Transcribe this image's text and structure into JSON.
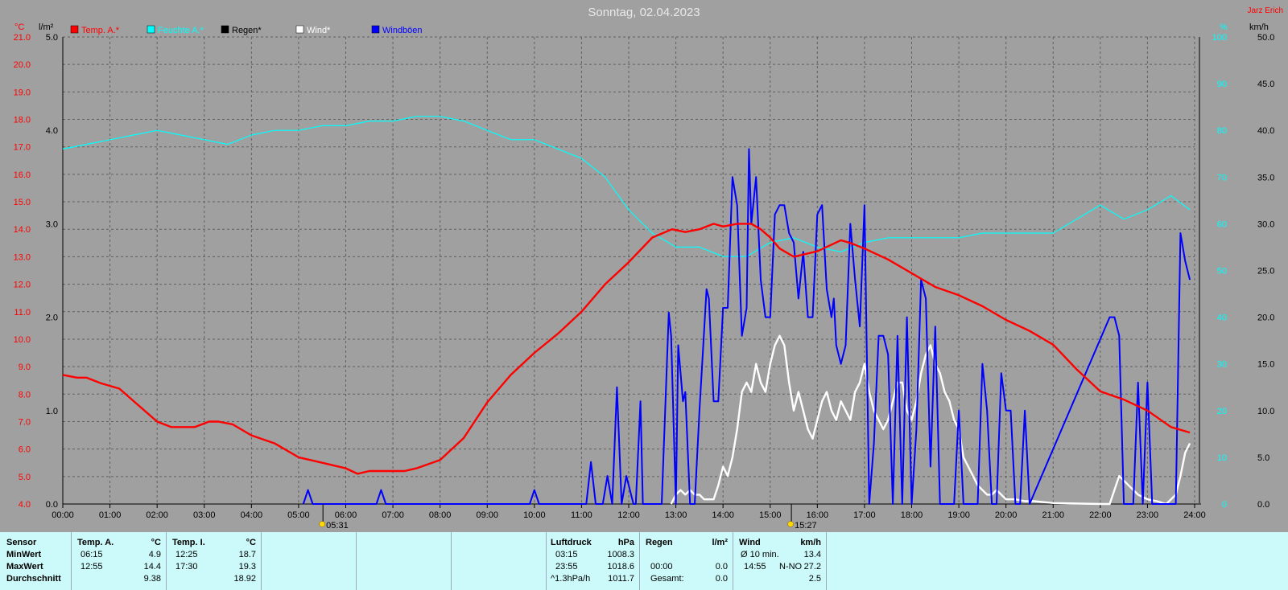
{
  "chart_data": {
    "type": "line",
    "title": "Sonntag, 02.04.2023",
    "author": "Jarz Erich",
    "x_ticks": [
      "00:00",
      "01:00",
      "02:00",
      "03:00",
      "04:00",
      "05:00",
      "06:00",
      "07:00",
      "08:00",
      "09:00",
      "10:00",
      "11:00",
      "12:00",
      "13:00",
      "14:00",
      "15:00",
      "16:00",
      "17:00",
      "18:00",
      "19:00",
      "20:00",
      "21:00",
      "22:00",
      "23:00",
      "24:00"
    ],
    "sunrise": "05:31",
    "sunset": "15:27",
    "axes": {
      "temp": {
        "unit": "°C",
        "min": 4.0,
        "max": 21.0,
        "ticks": [
          "4.0",
          "5.0",
          "6.0",
          "7.0",
          "8.0",
          "9.0",
          "10.0",
          "11.0",
          "12.0",
          "13.0",
          "14.0",
          "15.0",
          "16.0",
          "17.0",
          "18.0",
          "19.0",
          "20.0",
          "21.0"
        ],
        "color": "#ff0000"
      },
      "rain": {
        "unit": "l/m²",
        "min": 0.0,
        "max": 5.0,
        "ticks": [
          "0.0",
          "1.0",
          "2.0",
          "3.0",
          "4.0",
          "5.0"
        ],
        "color": "#000000"
      },
      "humidity": {
        "unit": "%",
        "min": 0,
        "max": 100,
        "ticks": [
          "0",
          "10",
          "20",
          "30",
          "40",
          "50",
          "60",
          "70",
          "80",
          "90",
          "100"
        ],
        "color": "#00ffff"
      },
      "wind": {
        "unit": "km/h",
        "min": 0.0,
        "max": 50.0,
        "ticks": [
          "0.0",
          "5.0",
          "10.0",
          "15.0",
          "20.0",
          "25.0",
          "30.0",
          "35.0",
          "40.0",
          "45.0",
          "50.0"
        ],
        "color": "#000000"
      }
    },
    "legend": [
      {
        "name": "Temp. A.*",
        "color": "#ff0000"
      },
      {
        "name": "Feuchte A.*",
        "color": "#00ffff"
      },
      {
        "name": "Regen*",
        "color": "#000000"
      },
      {
        "name": "Wind*",
        "color": "#ffffff"
      },
      {
        "name": "Windböen",
        "color": "#0000ff"
      }
    ],
    "series": [
      {
        "name": "Temp. A.*",
        "axis": "temp",
        "color": "#ff0000",
        "x": [
          0,
          0.3,
          0.5,
          0.8,
          1.2,
          1.6,
          2.0,
          2.3,
          2.8,
          3.1,
          3.3,
          3.6,
          4.0,
          4.5,
          5.0,
          5.5,
          6.0,
          6.25,
          6.5,
          7.0,
          7.25,
          7.5,
          8.0,
          8.5,
          9.0,
          9.5,
          10.0,
          10.5,
          11.0,
          11.5,
          12.0,
          12.5,
          12.92,
          13.2,
          13.5,
          13.8,
          14.0,
          14.3,
          14.6,
          14.8,
          15.0,
          15.2,
          15.5,
          16.0,
          16.5,
          16.7,
          17.0,
          17.5,
          18.0,
          18.5,
          19.0,
          19.5,
          20.0,
          20.5,
          21.0,
          21.5,
          22.0,
          22.5,
          23.0,
          23.5,
          23.9
        ],
        "y": [
          8.7,
          8.6,
          8.6,
          8.4,
          8.2,
          7.6,
          7.0,
          6.8,
          6.8,
          7.0,
          7.0,
          6.9,
          6.5,
          6.2,
          5.7,
          5.5,
          5.3,
          5.1,
          5.2,
          5.2,
          5.2,
          5.3,
          5.6,
          6.4,
          7.7,
          8.7,
          9.5,
          10.2,
          11.0,
          12.0,
          12.8,
          13.7,
          14.0,
          13.9,
          14.0,
          14.2,
          14.1,
          14.2,
          14.2,
          14.0,
          13.7,
          13.3,
          13.0,
          13.2,
          13.6,
          13.5,
          13.3,
          12.9,
          12.4,
          11.9,
          11.6,
          11.2,
          10.7,
          10.3,
          9.8,
          8.9,
          8.1,
          7.8,
          7.4,
          6.8,
          6.6
        ]
      },
      {
        "name": "Feuchte A.*",
        "axis": "humidity",
        "color": "#00ffff",
        "x": [
          0,
          0.5,
          1.0,
          1.5,
          2.0,
          2.5,
          3.0,
          3.5,
          4.0,
          4.5,
          5.0,
          5.5,
          6.0,
          6.5,
          7.0,
          7.5,
          8.0,
          8.5,
          9.0,
          9.5,
          10.0,
          10.5,
          11.0,
          11.5,
          12.0,
          12.5,
          13.0,
          13.5,
          14.0,
          14.5,
          15.0,
          15.5,
          16.0,
          16.5,
          17.0,
          17.5,
          18.0,
          18.5,
          19.0,
          19.5,
          20.0,
          20.5,
          21.0,
          21.5,
          22.0,
          22.5,
          23.0,
          23.5,
          23.9
        ],
        "y": [
          76,
          77,
          78,
          79,
          80,
          79,
          78,
          77,
          79,
          80,
          80,
          81,
          81,
          82,
          82,
          83,
          83,
          82,
          80,
          78,
          78,
          76,
          74,
          70,
          63,
          58,
          55,
          55,
          53,
          53,
          56,
          57,
          55,
          54,
          56,
          57,
          57,
          57,
          57,
          58,
          58,
          58,
          58,
          61,
          64,
          61,
          63,
          66,
          63
        ]
      },
      {
        "name": "Windböen",
        "axis": "wind",
        "color": "#0000ff",
        "x": [
          5.1,
          5.2,
          5.3,
          6.65,
          6.75,
          6.85,
          9.9,
          10.0,
          10.1,
          11.0,
          11.1,
          11.2,
          11.3,
          11.45,
          11.55,
          11.65,
          11.75,
          11.85,
          11.95,
          12.1,
          12.15,
          12.25,
          12.3,
          12.4,
          12.5,
          12.6,
          12.7,
          12.85,
          12.9,
          13.0,
          13.05,
          13.15,
          13.2,
          13.3,
          13.4,
          13.5,
          13.65,
          13.7,
          13.8,
          13.9,
          14.0,
          14.1,
          14.2,
          14.3,
          14.4,
          14.5,
          14.55,
          14.6,
          14.7,
          14.8,
          14.9,
          15.0,
          15.1,
          15.2,
          15.3,
          15.4,
          15.5,
          15.6,
          15.7,
          15.8,
          15.9,
          16.0,
          16.1,
          16.2,
          16.3,
          16.35,
          16.4,
          16.5,
          16.6,
          16.7,
          16.8,
          16.9,
          17.0,
          17.1,
          17.2,
          17.3,
          17.4,
          17.5,
          17.6,
          17.7,
          17.8,
          17.9,
          18.0,
          18.1,
          18.2,
          18.3,
          18.4,
          18.5,
          18.6,
          18.7,
          18.8,
          18.9,
          19.0,
          19.1,
          19.2,
          19.3,
          19.4,
          19.5,
          19.6,
          19.7,
          19.8,
          19.9,
          20.0,
          20.1,
          20.2,
          20.3,
          20.4,
          20.5,
          22.2,
          22.3,
          22.4,
          22.5,
          22.6,
          22.7,
          22.8,
          22.9,
          23.0,
          23.1,
          23.2,
          23.3,
          23.4,
          23.5,
          23.6,
          23.7,
          23.8,
          23.9
        ],
        "y": [
          0,
          1.5,
          0,
          0,
          1.5,
          0,
          0,
          1.5,
          0,
          0,
          0,
          4.5,
          0,
          0,
          3,
          0,
          12.5,
          0,
          3,
          0,
          0,
          11,
          0,
          0,
          0,
          0,
          0,
          20.5,
          18,
          0,
          17,
          11,
          12,
          0,
          0,
          10,
          23,
          22,
          11,
          11,
          21,
          21,
          35,
          32,
          18,
          21,
          38,
          30,
          35,
          24,
          20,
          20,
          31,
          32,
          32,
          29,
          28,
          22,
          27,
          20,
          20,
          31,
          32,
          23,
          20,
          22,
          17,
          15,
          17,
          30,
          24,
          19,
          32,
          0,
          6.5,
          18,
          18,
          16,
          0,
          18,
          0,
          20,
          0,
          8,
          24,
          22,
          4,
          19,
          0,
          0,
          0,
          0,
          10,
          0,
          0,
          0,
          0,
          15,
          10,
          0,
          0,
          14,
          10,
          10,
          0,
          0,
          10,
          0,
          20,
          20,
          18,
          0,
          0,
          0,
          13,
          0,
          13,
          0,
          0,
          0,
          0,
          0,
          0,
          29,
          26,
          24
        ]
      },
      {
        "name": "Wind*",
        "axis": "wind",
        "color": "#ffffff",
        "x": [
          12.9,
          13.0,
          13.1,
          13.2,
          13.3,
          13.4,
          13.5,
          13.6,
          13.7,
          13.8,
          13.9,
          14.0,
          14.1,
          14.2,
          14.3,
          14.4,
          14.5,
          14.6,
          14.7,
          14.8,
          14.9,
          15.0,
          15.1,
          15.2,
          15.3,
          15.4,
          15.5,
          15.6,
          15.7,
          15.8,
          15.9,
          16.0,
          16.1,
          16.2,
          16.3,
          16.4,
          16.5,
          16.6,
          16.7,
          16.8,
          16.9,
          17.0,
          17.1,
          17.2,
          17.3,
          17.4,
          17.5,
          17.6,
          17.7,
          17.8,
          17.9,
          18.0,
          18.1,
          18.2,
          18.3,
          18.4,
          18.5,
          18.6,
          18.7,
          18.8,
          18.9,
          19.0,
          19.1,
          19.2,
          19.3,
          19.4,
          19.5,
          19.6,
          19.7,
          19.8,
          19.9,
          20.0,
          20.2,
          20.4,
          20.6,
          20.8,
          21.0,
          22.0,
          22.2,
          22.4,
          22.6,
          22.8,
          23.0,
          23.2,
          23.4,
          23.6,
          23.7,
          23.8,
          23.9
        ],
        "y": [
          0,
          1,
          1.5,
          1,
          1.5,
          1,
          1,
          0.5,
          0.5,
          0.5,
          2,
          4,
          3,
          5,
          8,
          12,
          13,
          12,
          15,
          13,
          12,
          15,
          17,
          18,
          17,
          13,
          10,
          12,
          10,
          8,
          7,
          9,
          11,
          12,
          10,
          9,
          11,
          10,
          9,
          12,
          13,
          15,
          12,
          10,
          9,
          8,
          9,
          11,
          13,
          13,
          10,
          9,
          11,
          14,
          16,
          17,
          15,
          14,
          12,
          11,
          9,
          8,
          5,
          4,
          3,
          2,
          1.5,
          1,
          1,
          1.5,
          1,
          0.5,
          0.5,
          0.3,
          0.3,
          0.2,
          0.1,
          0,
          0,
          3,
          2,
          1,
          0.5,
          0.3,
          0,
          1,
          3,
          5.5,
          6.5
        ]
      }
    ]
  },
  "panel": {
    "sensor": {
      "title": "Sensor",
      "rows": [
        "MinWert",
        "MaxWert",
        "Durchschnitt"
      ]
    },
    "temp_a": {
      "title": "Temp. A.",
      "unit": "°C",
      "min_time": "06:15",
      "min": "4.9",
      "max_time": "12:55",
      "max": "14.4",
      "avg": "9.38"
    },
    "temp_i": {
      "title": "Temp. I.",
      "unit": "°C",
      "min_time": "12:25",
      "min": "18.7",
      "max_time": "17:30",
      "max": "19.3",
      "avg": "18.92"
    },
    "pressure": {
      "title": "Luftdruck",
      "unit": "hPa",
      "min_time": "03:15",
      "min": "1008.3",
      "max_time": "23:55",
      "max": "1018.6",
      "trend": "^1.3hPa/h",
      "avg": "1011.7"
    },
    "rain": {
      "title": "Regen",
      "unit": "l/m²",
      "time": "00:00",
      "value": "0.0",
      "total_label": "Gesamt:",
      "total": "0.0"
    },
    "wind": {
      "title": "Wind",
      "unit": "km/h",
      "avg_label": "Ø 10 min.",
      "avg": "13.4",
      "gust_time": "14:55",
      "gust_dir": "N-NO",
      "gust": "27.2",
      "mean": "2.5"
    }
  }
}
